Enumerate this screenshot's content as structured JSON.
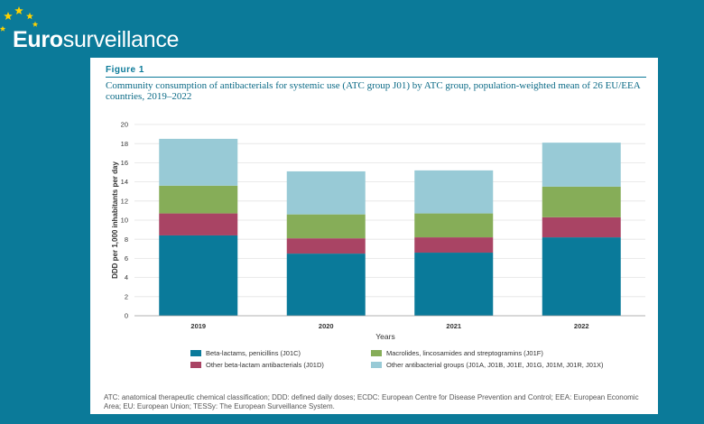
{
  "brand": {
    "name_part1": "Euro",
    "name_part2": "surveillance",
    "star_color": "#ffd200"
  },
  "figure": {
    "label": "Figure 1",
    "title": "Community consumption of antibacterials for systemic use (ATC group J01) by ATC group, population-weighted mean of 26 EU/EEA countries, 2019–2022",
    "footnote": "ATC: anatomical therapeutic chemical classification; DDD: defined daily doses; ECDC: European Centre for Disease Prevention and Control; EEA: European Economic Area; EU: European Union; TESSy: The European Surveillance System."
  },
  "chart_data": {
    "type": "bar",
    "stacked": true,
    "categories": [
      "2019",
      "2020",
      "2021",
      "2022"
    ],
    "xlabel": "Years",
    "ylabel": "DDD per 1,000 inhabitants per day",
    "ylim": [
      0,
      20
    ],
    "yticks": [
      0,
      2,
      4,
      6,
      8,
      10,
      12,
      14,
      16,
      18,
      20
    ],
    "grid": true,
    "legend_position": "bottom",
    "series": [
      {
        "name": "Beta-lactams, penicillins (J01C)",
        "color": "#0a7a9a",
        "values": [
          8.4,
          6.5,
          6.6,
          8.2
        ]
      },
      {
        "name": "Other beta-lactam antibacterials (J01D)",
        "color": "#a94464",
        "values": [
          2.3,
          1.6,
          1.6,
          2.1
        ]
      },
      {
        "name": "Macrolides, lincosamides and streptogramins (J01F)",
        "color": "#86ad58",
        "values": [
          2.9,
          2.5,
          2.5,
          3.2
        ]
      },
      {
        "name": "Other antibacterial groups (J01A, J01B, J01E, J01G, J01M, J01R, J01X)",
        "color": "#98cad6",
        "values": [
          4.9,
          4.5,
          4.5,
          4.6
        ]
      }
    ]
  }
}
